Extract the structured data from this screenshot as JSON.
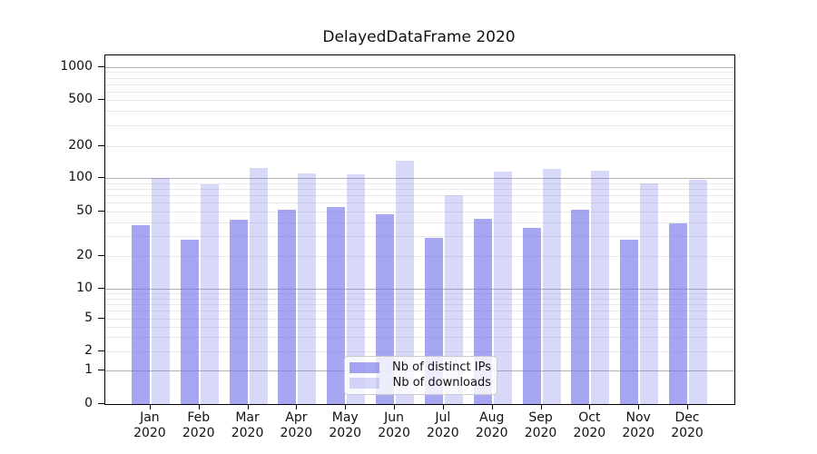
{
  "title": "DelayedDataFrame 2020",
  "chart_data": {
    "type": "bar",
    "title": "DelayedDataFrame 2020",
    "categories": [
      "Jan 2020",
      "Feb 2020",
      "Mar 2020",
      "Apr 2020",
      "May 2020",
      "Jun 2020",
      "Jul 2020",
      "Aug 2020",
      "Sep 2020",
      "Oct 2020",
      "Nov 2020",
      "Dec 2020"
    ],
    "series": [
      {
        "name": "Nb of distinct IPs",
        "color": "#7070e8",
        "alpha": 0.62,
        "rendered_color": "#a6a6f1",
        "values": [
          38,
          28,
          42,
          52,
          55,
          47,
          29,
          43,
          36,
          52,
          28,
          39
        ]
      },
      {
        "name": "Nb of downloads",
        "color": "#7070e8",
        "alpha": 0.27,
        "rendered_color": "#d8d8f9",
        "values": [
          100,
          87,
          125,
          111,
          109,
          147,
          70,
          116,
          123,
          118,
          89,
          96
        ]
      }
    ],
    "xlabel": "",
    "ylabel": "",
    "yscale": "log-like (log above 1, linear 0–1)",
    "yticks": [
      0,
      1,
      2,
      5,
      10,
      20,
      50,
      100,
      200,
      500,
      1000
    ],
    "ylim": [
      0,
      1300
    ],
    "grid": "horizontal major + log-minor gridlines",
    "grid_major_color": "#b3b3b3",
    "grid_minor_color": "#e9e9e9",
    "legend_position": "lower center",
    "axis_color": "#000000"
  }
}
